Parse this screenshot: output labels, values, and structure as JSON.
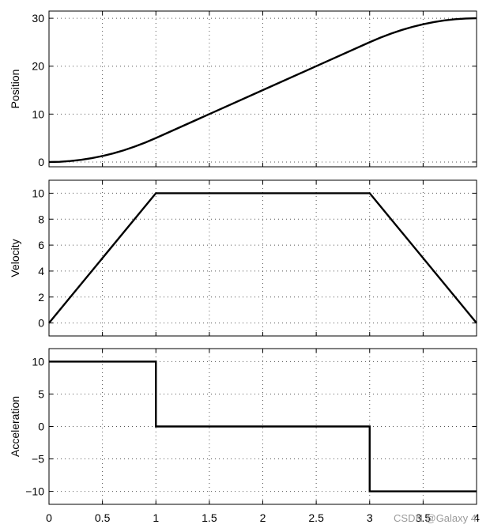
{
  "chart_data": [
    {
      "type": "line",
      "title": "",
      "xlabel": "",
      "ylabel": "Position",
      "xlim": [
        0,
        4
      ],
      "ylim": [
        -1,
        31.5
      ],
      "grid": true,
      "x_ticks": [
        0,
        0.5,
        1,
        1.5,
        2,
        2.5,
        3,
        3.5,
        4
      ],
      "y_ticks": [
        0,
        10,
        20,
        30
      ],
      "y_tick_labels": [
        "0",
        "10",
        "20",
        "30"
      ],
      "show_x_tick_labels": false,
      "series": [
        {
          "color": "#000000",
          "x": [
            0,
            0.1,
            0.2,
            0.3,
            0.4,
            0.5,
            0.6,
            0.7,
            0.8,
            0.9,
            1.0,
            1.5,
            2.0,
            2.5,
            3.0,
            3.1,
            3.2,
            3.3,
            3.4,
            3.5,
            3.6,
            3.7,
            3.8,
            3.9,
            4.0
          ],
          "y": [
            0,
            0.05,
            0.2,
            0.45,
            0.8,
            1.25,
            1.8,
            2.45,
            3.2,
            4.05,
            5.0,
            10.0,
            15.0,
            20.0,
            25.0,
            25.95,
            26.8,
            27.55,
            28.2,
            28.75,
            29.2,
            29.55,
            29.8,
            29.95,
            30.0
          ]
        }
      ]
    },
    {
      "type": "line",
      "title": "",
      "xlabel": "",
      "ylabel": "Velocity",
      "xlim": [
        0,
        4
      ],
      "ylim": [
        -1,
        11
      ],
      "grid": true,
      "x_ticks": [
        0,
        0.5,
        1,
        1.5,
        2,
        2.5,
        3,
        3.5,
        4
      ],
      "y_ticks": [
        0,
        2,
        4,
        6,
        8,
        10
      ],
      "y_tick_labels": [
        "0",
        "2",
        "4",
        "6",
        "8",
        "10"
      ],
      "show_x_tick_labels": false,
      "series": [
        {
          "color": "#000000",
          "x": [
            0,
            1,
            3,
            4
          ],
          "y": [
            0,
            10,
            10,
            0
          ]
        }
      ]
    },
    {
      "type": "line",
      "title": "",
      "xlabel": "",
      "ylabel": "Acceleration",
      "xlim": [
        0,
        4
      ],
      "ylim": [
        -12,
        12
      ],
      "grid": true,
      "x_ticks": [
        0,
        0.5,
        1,
        1.5,
        2,
        2.5,
        3,
        3.5,
        4
      ],
      "x_tick_labels": [
        "0",
        "0.5",
        "1",
        "1.5",
        "2",
        "2.5",
        "3",
        "3.5",
        "4"
      ],
      "y_ticks": [
        -10,
        -5,
        0,
        5,
        10
      ],
      "y_tick_labels": [
        "−10",
        "−5",
        "0",
        "5",
        "10"
      ],
      "show_x_tick_labels": true,
      "series": [
        {
          "color": "#000000",
          "x": [
            0,
            1,
            1,
            3,
            3,
            4
          ],
          "y": [
            10,
            10,
            0,
            0,
            -10,
            -10
          ]
        }
      ]
    }
  ],
  "watermark": "CSDN @Galaxy 4"
}
